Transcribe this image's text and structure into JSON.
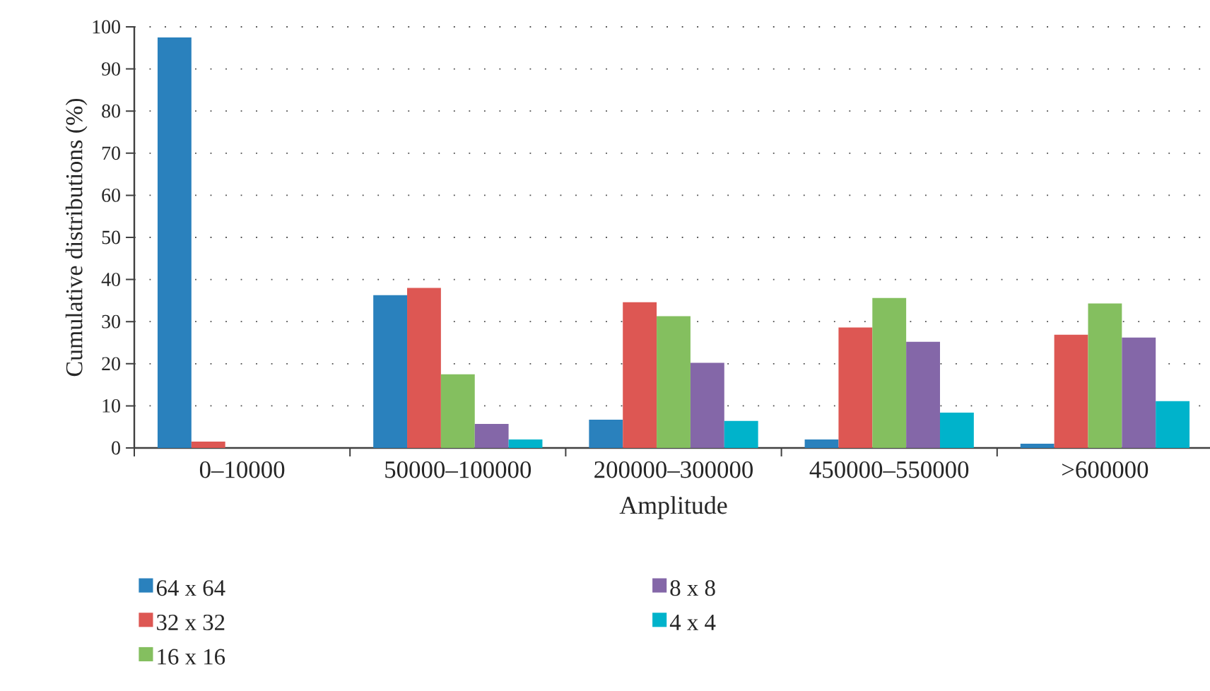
{
  "chart_data": {
    "type": "bar",
    "xlabel": "Amplitude",
    "ylabel": "Cumulative distributions (%)",
    "categories": [
      "0–10000",
      "50000–100000",
      "200000–300000",
      "450000–550000",
      ">600000"
    ],
    "series": [
      {
        "name": "64 x 64",
        "color": "#2a81bd",
        "values": [
          97.5,
          36.3,
          6.7,
          2,
          1
        ]
      },
      {
        "name": "32 x 32",
        "color": "#dd5753",
        "values": [
          1.5,
          38,
          34.6,
          28.6,
          26.9
        ]
      },
      {
        "name": "16 x 16",
        "color": "#84bf5f",
        "values": [
          0,
          17.5,
          31.3,
          35.6,
          34.3
        ]
      },
      {
        "name": "8 x 8",
        "color": "#8467a8",
        "values": [
          0,
          5.7,
          20.2,
          25.2,
          26.2
        ]
      },
      {
        "name": "4 x 4",
        "color": "#00b3cb",
        "values": [
          0,
          2,
          6.4,
          8.4,
          11.1
        ]
      }
    ],
    "ylim": [
      0,
      100
    ],
    "yticks": [
      0,
      10,
      20,
      30,
      40,
      50,
      60,
      70,
      80,
      90,
      100
    ],
    "grid": "y",
    "legend": "bottom"
  }
}
